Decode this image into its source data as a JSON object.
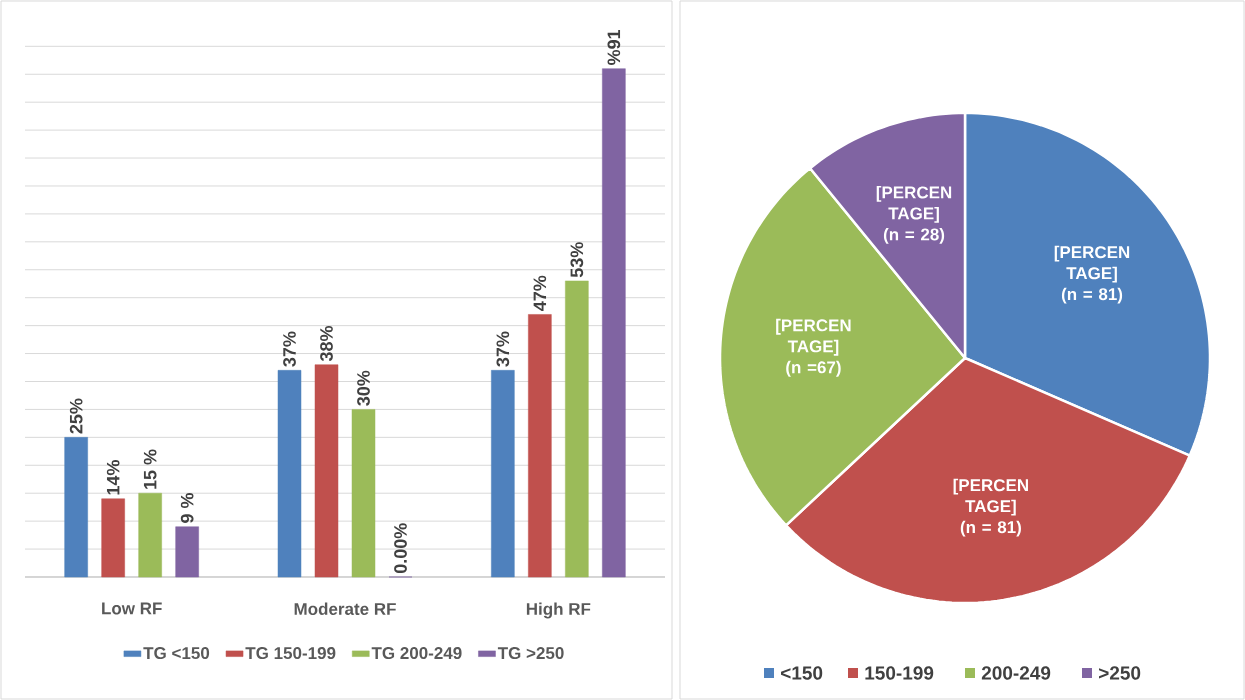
{
  "chart_data": [
    {
      "type": "bar",
      "categories": [
        "Low RF",
        "Moderate RF",
        "High RF"
      ],
      "series": [
        {
          "name": "TG <150",
          "color": "#4f81bd",
          "values": [
            25,
            37,
            37
          ],
          "value_labels": [
            "25%",
            "37%",
            "37%"
          ]
        },
        {
          "name": "TG 150-199",
          "color": "#c0504d",
          "values": [
            14,
            38,
            47
          ],
          "value_labels": [
            "14%",
            "38%",
            "47%"
          ]
        },
        {
          "name": "TG 200-249",
          "color": "#9bbb59",
          "values": [
            15,
            30,
            53
          ],
          "value_labels": [
            "15 %",
            "30%",
            "53%"
          ]
        },
        {
          "name": "TG >250",
          "color": "#8064a2",
          "values": [
            9,
            0,
            91
          ],
          "value_labels": [
            "9 %",
            "0.00%",
            "%91"
          ]
        }
      ],
      "grid": "y",
      "legend": "bottom",
      "tick_labels": "x"
    },
    {
      "type": "pie",
      "categories": [
        "<150",
        "150-199",
        "200-249",
        ">250"
      ],
      "values": [
        81,
        81,
        67,
        28
      ],
      "colors": [
        "#4f81bd",
        "#c0504d",
        "#9bbb59",
        "#8064a2"
      ],
      "value_labels": [
        "[PERCEN TAGE] (n = 81)",
        "[PERCEN TAGE] (n = 81)",
        "[PERCEN TAGE] (n =67)",
        "[PERCEN TAGE] (n = 28)"
      ],
      "legend": "bottom"
    }
  ]
}
